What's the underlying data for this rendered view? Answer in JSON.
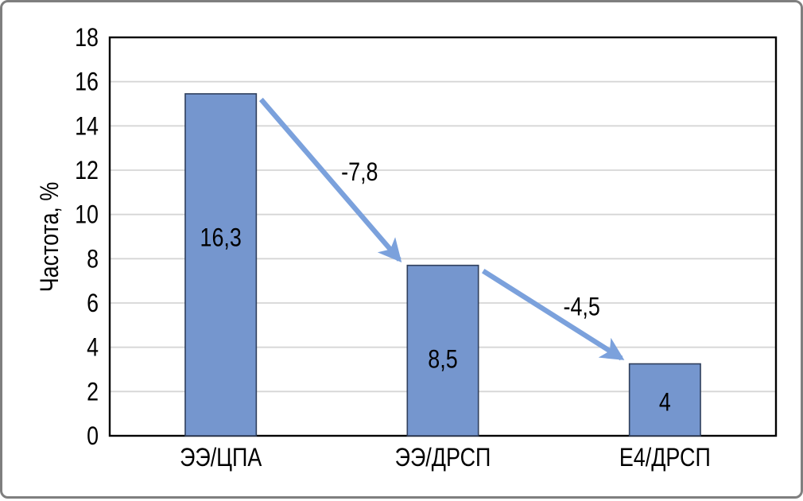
{
  "figure": {
    "border_color": "#7f7f7f",
    "background": "#ffffff"
  },
  "chart_data": {
    "type": "bar",
    "title": "",
    "xlabel": "",
    "ylabel": "Частота, %",
    "categories": [
      "ЭЭ/ЦПА",
      "ЭЭ/ДРСП",
      "Е4/ДРСП"
    ],
    "values": [
      16.3,
      8.5,
      4
    ],
    "bar_labels": [
      "16,3",
      "8,5",
      "4"
    ],
    "plotted_bar_tops": [
      15.45,
      7.7,
      3.25
    ],
    "annotations": [
      {
        "label": "-7,8",
        "from": 0,
        "to": 1
      },
      {
        "label": "-4,5",
        "from": 1,
        "to": 2
      }
    ],
    "ylim": [
      0,
      18
    ],
    "ytick_step": 2,
    "grid": true,
    "legend": "none",
    "colors": {
      "bar_fill": "#7596ce",
      "bar_border": "#2f3f5c",
      "arrow": "#7ba1dc",
      "gridline": "#d6d6d6",
      "frame": "#000000",
      "text": "#000000"
    }
  }
}
